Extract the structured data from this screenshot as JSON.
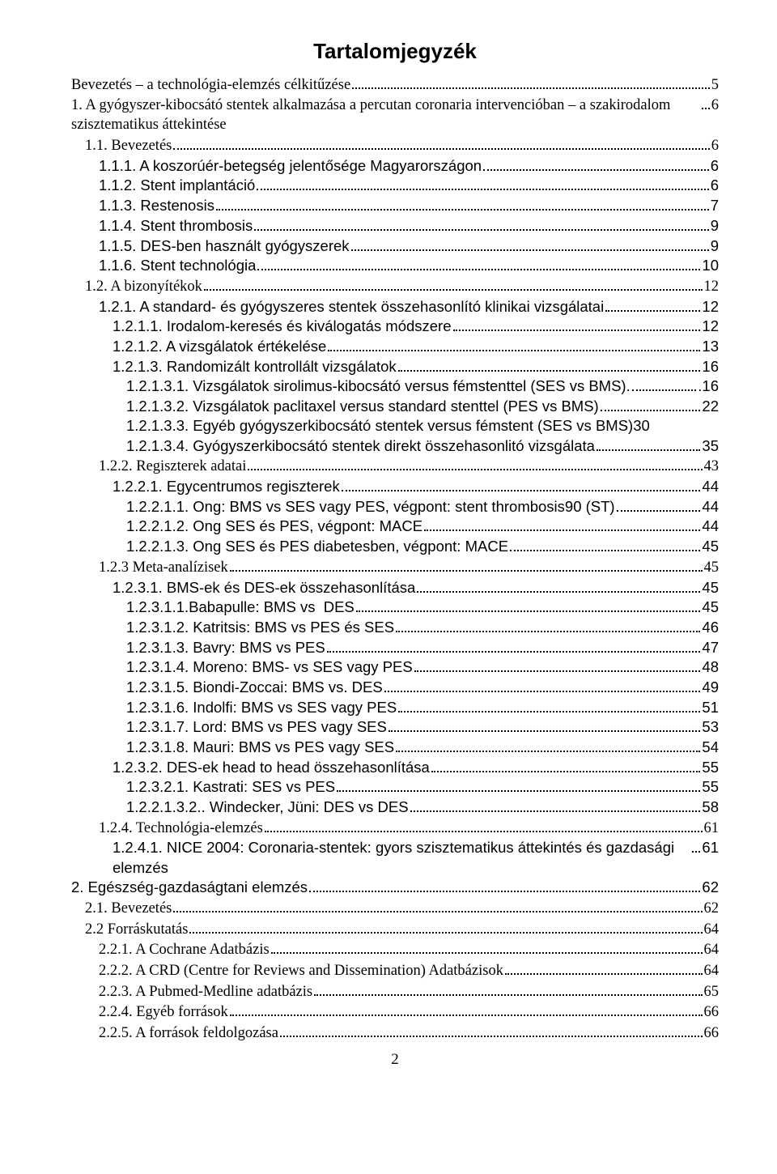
{
  "title": "Tartalomjegyzék",
  "page_number": "2",
  "entries": [
    {
      "indent": 0,
      "serif": true,
      "label": "Bevezetés – a technológia-elemzés célkitűzése",
      "page": "5"
    },
    {
      "indent": 0,
      "serif": true,
      "label": "1. A gyógyszer-kibocsátó stentek alkalmazása a percutan coronaria intervencióban – a szakirodalom szisztematikus áttekintése",
      "page": "6"
    },
    {
      "indent": 1,
      "serif": true,
      "label": "1.1. Bevezetés",
      "page": "6"
    },
    {
      "indent": 2,
      "serif": false,
      "label": "1.1.1. A koszorúér-betegség jelentősége Magyarországon",
      "page": "6"
    },
    {
      "indent": 2,
      "serif": false,
      "label": "1.1.2. Stent implantáció",
      "page": "6"
    },
    {
      "indent": 2,
      "serif": false,
      "label": "1.1.3. Restenosis",
      "page": "7"
    },
    {
      "indent": 2,
      "serif": false,
      "label": "1.1.4. Stent thrombosis",
      "page": "9"
    },
    {
      "indent": 2,
      "serif": false,
      "label": "1.1.5. DES-ben használt gyógyszerek",
      "page": "9"
    },
    {
      "indent": 2,
      "serif": false,
      "label": "1.1.6. Stent technológia",
      "page": "10"
    },
    {
      "indent": 1,
      "serif": true,
      "label": "1.2. A bizonyítékok",
      "page": "12"
    },
    {
      "indent": 2,
      "serif": false,
      "label": "1.2.1. A standard- és gyógyszeres stentek összehasonlító klinikai vizsgálatai",
      "page": "12"
    },
    {
      "indent": 3,
      "serif": false,
      "label": "1.2.1.1. Irodalom-keresés és kiválogatás módszere",
      "page": "12"
    },
    {
      "indent": 3,
      "serif": false,
      "label": "1.2.1.2. A vizsgálatok értékelése",
      "page": "13"
    },
    {
      "indent": 3,
      "serif": false,
      "label": "1.2.1.3. Randomizált kontrollált vizsgálatok",
      "page": "16"
    },
    {
      "indent": 4,
      "serif": false,
      "label": "1.2.1.3.1. Vizsgálatok sirolimus-kibocsátó versus fémstenttel (SES vs BMS).",
      "page": ".16"
    },
    {
      "indent": 4,
      "serif": false,
      "label": "1.2.1.3.2. Vizsgálatok paclitaxel versus standard stenttel (PES vs BMS)",
      "page": "22"
    },
    {
      "indent": 4,
      "serif": false,
      "label": "1.2.1.3.3. Egyéb gyógyszerkibocsátó stentek versus fémstent (SES vs BMS)",
      "page": "30",
      "nodots": true
    },
    {
      "indent": 4,
      "serif": false,
      "label": "1.2.1.3.4. Gyógyszerkibocsátó stentek direkt összehasonlitó vizsgálata",
      "page": "35"
    },
    {
      "indent": 2,
      "serif": true,
      "label": "1.2.2. Regiszterek adatai",
      "page": "43"
    },
    {
      "indent": 3,
      "serif": false,
      "label": "1.2.2.1. Egycentrumos regiszterek",
      "page": "44"
    },
    {
      "indent": 4,
      "serif": false,
      "label": "1.2.2.1.1. Ong: BMS vs SES vagy PES, végpont: stent thrombosis90 (ST)",
      "page": "44"
    },
    {
      "indent": 4,
      "serif": false,
      "label": "1.2.2.1.2. Ong SES és PES, végpont: MACE",
      "page": "44"
    },
    {
      "indent": 4,
      "serif": false,
      "label": "1.2.2.1.3. Ong SES és PES diabetesben, végpont: MACE",
      "page": "45"
    },
    {
      "indent": 2,
      "serif": true,
      "label": "1.2.3 Meta-analízisek",
      "page": "45"
    },
    {
      "indent": 3,
      "serif": false,
      "label": "1.2.3.1. BMS-ek és DES-ek összehasonlítása",
      "page": "45"
    },
    {
      "indent": 4,
      "serif": false,
      "label": "1.2.3.1.1.Babapulle: BMS vs  DES",
      "page": "45"
    },
    {
      "indent": 4,
      "serif": false,
      "label": "1.2.3.1.2. Katritsis: BMS vs PES és SES",
      "page": "46"
    },
    {
      "indent": 4,
      "serif": false,
      "label": "1.2.3.1.3. Bavry: BMS vs PES",
      "page": "47"
    },
    {
      "indent": 4,
      "serif": false,
      "label": "1.2.3.1.4. Moreno: BMS- vs SES vagy PES",
      "page": "48"
    },
    {
      "indent": 4,
      "serif": false,
      "label": "1.2.3.1.5. Biondi-Zoccai: BMS vs. DES",
      "page": "49"
    },
    {
      "indent": 4,
      "serif": false,
      "label": "1.2.3.1.6. Indolfi: BMS vs SES vagy PES",
      "page": "51"
    },
    {
      "indent": 4,
      "serif": false,
      "label": "1.2.3.1.7. Lord: BMS vs PES vagy SES",
      "page": "53"
    },
    {
      "indent": 4,
      "serif": false,
      "label": "1.2.3.1.8. Mauri: BMS vs PES vagy SES",
      "page": "54"
    },
    {
      "indent": 3,
      "serif": false,
      "label": "1.2.3.2. DES-ek head to head összehasonlítása",
      "page": "55"
    },
    {
      "indent": 4,
      "serif": false,
      "label": "1.2.3.2.1. Kastrati: SES vs PES",
      "page": "55"
    },
    {
      "indent": 4,
      "serif": false,
      "label": "1.2.2.1.3.2.. Windecker, Jüni: DES vs DES",
      "page": "58"
    },
    {
      "indent": 2,
      "serif": true,
      "label": "1.2.4. Technológia-elemzés",
      "page": "61"
    },
    {
      "indent": 3,
      "serif": false,
      "label": "1.2.4.1. NICE 2004: Coronaria-stentek: gyors szisztematikus áttekintés és gazdasági elemzés",
      "page": "61"
    },
    {
      "indent": 0,
      "serif": false,
      "label": "2. Egészség-gazdaságtani elemzés",
      "page": "62"
    },
    {
      "indent": 1,
      "serif": true,
      "label": "2.1. Bevezetés",
      "page": "62"
    },
    {
      "indent": 1,
      "serif": true,
      "label": "2.2 Forráskutatás",
      "page": "64"
    },
    {
      "indent": 2,
      "serif": true,
      "label": "2.2.1. A Cochrane Adatbázis",
      "page": "64"
    },
    {
      "indent": 2,
      "serif": true,
      "label": "2.2.2. A CRD (Centre for Reviews and Dissemination) Adatbázisok",
      "page": "64"
    },
    {
      "indent": 2,
      "serif": true,
      "label": "2.2.3. A Pubmed-Medline adatbázis",
      "page": "65"
    },
    {
      "indent": 2,
      "serif": true,
      "label": "2.2.4. Egyéb források",
      "page": "66"
    },
    {
      "indent": 2,
      "serif": true,
      "label": "2.2.5. A források feldolgozása",
      "page": "66"
    }
  ]
}
